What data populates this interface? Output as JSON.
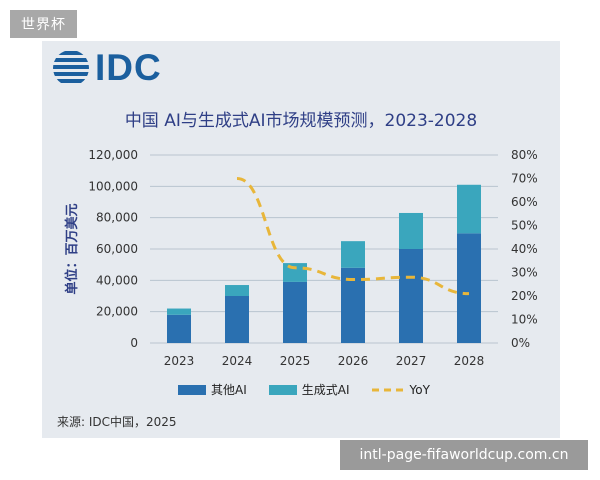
{
  "site_tag": "世界杯",
  "logo": {
    "text": "IDC",
    "color": "#1b5f9e"
  },
  "source": "来源: IDC中国，2025",
  "watermark": "intl-page-fifaworldcup.com.cn",
  "colors": {
    "other_ai": "#2a70b0",
    "gen_ai": "#3aa6bd",
    "yoy": "#e8b63a",
    "grid": "#b9c4cf",
    "title": "#2f3f86",
    "axis_text": "#333333"
  },
  "chart_data": {
    "type": "bar",
    "stacked": true,
    "title": "中国 AI与生成式AI市场规模预测，2023-2028",
    "ylabel": "单位：百万美元",
    "categories": [
      "2023",
      "2024",
      "2025",
      "2026",
      "2027",
      "2028"
    ],
    "ylim": [
      0,
      120000
    ],
    "yticks": [
      "0",
      "20,000",
      "40,000",
      "60,000",
      "80,000",
      "100,000",
      "120,000"
    ],
    "y2lim": [
      0,
      80
    ],
    "y2ticks": [
      "0%",
      "10%",
      "20%",
      "30%",
      "40%",
      "50%",
      "60%",
      "70%",
      "80%"
    ],
    "grid": true,
    "legend_position": "bottom",
    "series": [
      {
        "name": "其他AI",
        "values": [
          18000,
          30000,
          39000,
          48000,
          60000,
          70000
        ]
      },
      {
        "name": "生成式AI",
        "values": [
          4000,
          7000,
          12000,
          17000,
          23000,
          31000
        ]
      }
    ],
    "line_series": {
      "name": "YoY",
      "axis": "secondary",
      "style": "dashed",
      "x": [
        "2024",
        "2025",
        "2026",
        "2027",
        "2028"
      ],
      "values": [
        70,
        32,
        27,
        28,
        21
      ]
    }
  }
}
